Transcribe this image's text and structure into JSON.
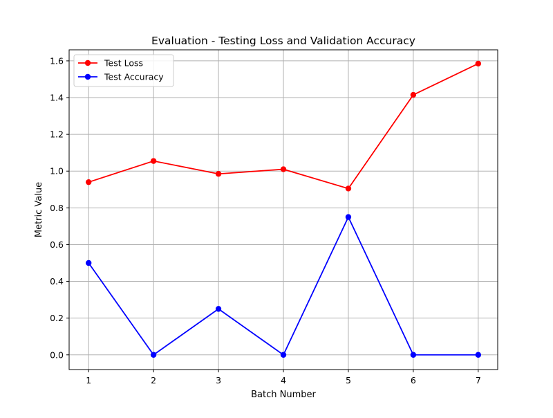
{
  "chart_data": {
    "type": "line",
    "title": "Evaluation - Testing Loss and Validation Accuracy",
    "xlabel": "Batch Number",
    "ylabel": "Metric Value",
    "x": [
      1,
      2,
      3,
      4,
      5,
      6,
      7
    ],
    "xticks": [
      "1",
      "2",
      "3",
      "4",
      "5",
      "6",
      "7"
    ],
    "yticks": [
      "0.0",
      "0.2",
      "0.4",
      "0.6",
      "0.8",
      "1.0",
      "1.2",
      "1.4",
      "1.6"
    ],
    "xlim": [
      0.7,
      7.3
    ],
    "ylim": [
      -0.08,
      1.66
    ],
    "grid": true,
    "legend_position": "top-left",
    "series": [
      {
        "name": "Test Loss",
        "color": "#ff0000",
        "marker": "circle",
        "values": [
          0.94,
          1.055,
          0.985,
          1.01,
          0.905,
          1.415,
          1.585
        ]
      },
      {
        "name": "Test Accuracy",
        "color": "#0000ff",
        "marker": "circle",
        "values": [
          0.5,
          0.0,
          0.25,
          0.0,
          0.75,
          0.0,
          0.0
        ]
      }
    ]
  }
}
